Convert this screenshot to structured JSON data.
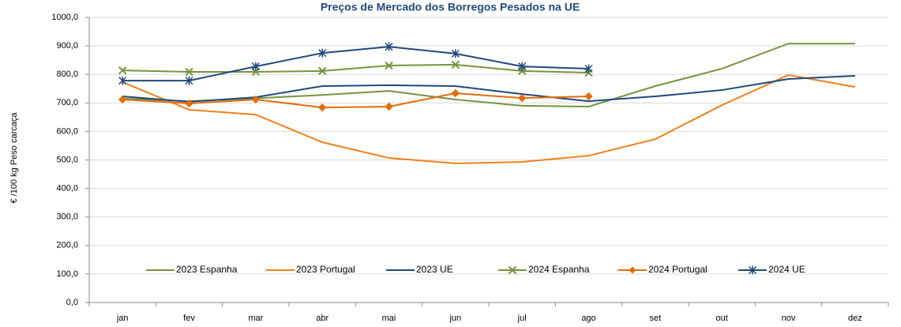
{
  "chart_data": {
    "type": "line",
    "title": "Preços de Mercado dos Borregos Pesados na UE",
    "y_label": "€ /100 kg Peso carcaça",
    "categories": [
      "jan",
      "fev",
      "mar",
      "abr",
      "mai",
      "jun",
      "jul",
      "ago",
      "set",
      "out",
      "nov",
      "dez"
    ],
    "ylim": [
      0,
      1000
    ],
    "yticks": [
      {
        "value": 0,
        "label": "0,0"
      },
      {
        "value": 100,
        "label": "100,0"
      },
      {
        "value": 200,
        "label": "200,0"
      },
      {
        "value": 300,
        "label": "300,0"
      },
      {
        "value": 400,
        "label": "400,0"
      },
      {
        "value": 500,
        "label": "500,0"
      },
      {
        "value": 600,
        "label": "600,0"
      },
      {
        "value": 700,
        "label": "700,0"
      },
      {
        "value": 800,
        "label": "800,0"
      },
      {
        "value": 900,
        "label": "900,0"
      },
      {
        "value": 1000,
        "label": "1000,0"
      }
    ],
    "grid": true,
    "legend": "bottom",
    "series": [
      {
        "name": "2023 Espanha",
        "color": "#77933c",
        "marker": "none",
        "values": [
          715,
          706,
          716,
          728,
          742,
          712,
          690,
          687,
          759,
          820,
          908,
          908
        ]
      },
      {
        "name": "2023 Portugal",
        "color": "#f0801f",
        "marker": "none",
        "values": [
          773,
          676,
          659,
          562,
          507,
          488,
          493,
          515,
          573,
          692,
          798,
          756
        ]
      },
      {
        "name": "2023 UE",
        "color": "#1f497d",
        "marker": "none",
        "values": [
          723,
          704,
          720,
          759,
          762,
          759,
          731,
          706,
          723,
          745,
          784,
          795
        ]
      },
      {
        "name": "2024 Espanha",
        "color": "#77933c",
        "marker": "x",
        "values": [
          814,
          809,
          809,
          812,
          831,
          834,
          812,
          806,
          null,
          null,
          null,
          null
        ]
      },
      {
        "name": "2024 Portugal",
        "color": "#e46c0a",
        "marker": "diamond",
        "values": [
          712,
          698,
          712,
          684,
          687,
          734,
          717,
          723,
          null,
          null,
          null,
          null
        ]
      },
      {
        "name": "2024 UE",
        "color": "#1f497d",
        "marker": "star",
        "values": [
          778,
          778,
          828,
          875,
          897,
          873,
          828,
          820,
          null,
          null,
          null,
          null
        ]
      }
    ]
  }
}
